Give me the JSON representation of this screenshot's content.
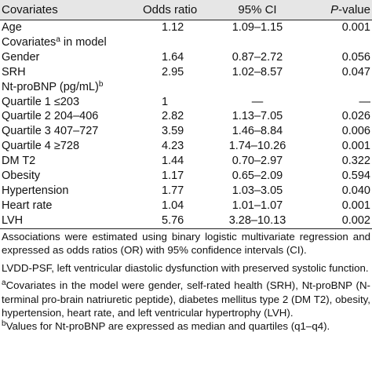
{
  "table": {
    "headers": {
      "covariates": "Covariates",
      "odds_ratio": "Odds ratio",
      "ci": "95% CI",
      "p_italic": "P",
      "p_rest": "-value"
    },
    "rows": [
      {
        "label": "Age",
        "sup": "",
        "tail": "",
        "or": "1.12",
        "ci": "1.09–1.15",
        "p": "0.001"
      },
      {
        "label": "Covariates",
        "sup": "a",
        "tail": " in model",
        "or": "",
        "ci": "",
        "p": ""
      },
      {
        "label": "Gender",
        "sup": "",
        "tail": "",
        "or": "1.64",
        "ci": "0.87–2.72",
        "p": "0.056"
      },
      {
        "label": "SRH",
        "sup": "",
        "tail": "",
        "or": "2.95",
        "ci": "1.02–8.57",
        "p": "0.047"
      },
      {
        "label": "Nt-proBNP (pg/mL)",
        "sup": "b",
        "tail": "",
        "or": "",
        "ci": "",
        "p": ""
      },
      {
        "label": "Quartile 1 ≤203",
        "sup": "",
        "tail": "",
        "or": "1",
        "ci": "—",
        "p": "—"
      },
      {
        "label": "Quartile 2 204–406",
        "sup": "",
        "tail": "",
        "or": "2.82",
        "ci": "1.13–7.05",
        "p": "0.026"
      },
      {
        "label": "Quartile 3 407–727",
        "sup": "",
        "tail": "",
        "or": "3.59",
        "ci": "1.46–8.84",
        "p": "0.006"
      },
      {
        "label": "Quartile 4 ≥728",
        "sup": "",
        "tail": "",
        "or": "4.23",
        "ci": "1.74–10.26",
        "p": "0.001"
      },
      {
        "label": "DM T2",
        "sup": "",
        "tail": "",
        "or": "1.44",
        "ci": "0.70–2.97",
        "p": "0.322"
      },
      {
        "label": "Obesity",
        "sup": "",
        "tail": "",
        "or": "1.17",
        "ci": "0.65–2.09",
        "p": "0.594"
      },
      {
        "label": "Hypertension",
        "sup": "",
        "tail": "",
        "or": "1.77",
        "ci": "1.03–3.05",
        "p": "0.040"
      },
      {
        "label": "Heart rate",
        "sup": "",
        "tail": "",
        "or": "1.04",
        "ci": "1.01–1.07",
        "p": "0.001"
      },
      {
        "label": "LVH",
        "sup": "",
        "tail": "",
        "or": "5.76",
        "ci": "3.28–10.13",
        "p": "0.002"
      }
    ]
  },
  "notes": {
    "assoc": "Associations were estimated using binary logistic multivariate regression and expressed as odds ratios (OR) with 95% confidence intervals (CI).",
    "abbrev": "LVDD-PSF, left ventricular diastolic dysfunction with preserved systolic function.",
    "a_mark": "a",
    "a_text": "Covariates in the model were gender, self-rated health (SRH), Nt-proBNP (N-terminal pro-brain natriuretic peptide), diabetes mellitus type 2 (DM T2), obesity, hypertension, heart rate, and left ventricular hypertrophy (LVH).",
    "b_mark": "b",
    "b_text": "Values for Nt-proBNP are expressed as median and quartiles (q1–q4)."
  }
}
